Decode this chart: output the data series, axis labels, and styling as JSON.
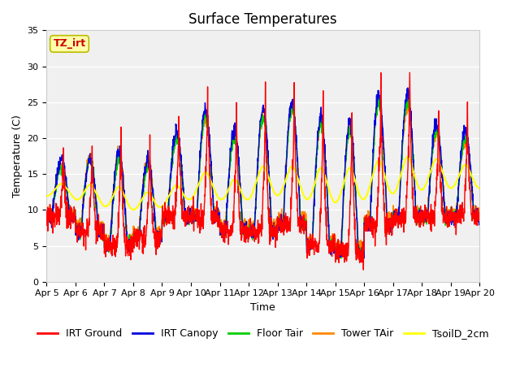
{
  "title": "Surface Temperatures",
  "xlabel": "Time",
  "ylabel": "Temperature (C)",
  "ylim": [
    0,
    35
  ],
  "ytick_vals": [
    0,
    5,
    10,
    15,
    20,
    25,
    30,
    35
  ],
  "xtick_labels": [
    "Apr 5",
    "Apr 6",
    "Apr 7",
    "Apr 8",
    "Apr 9",
    "Apr 10",
    "Apr 11",
    "Apr 12",
    "Apr 13",
    "Apr 14",
    "Apr 15",
    "Apr 16",
    "Apr 17",
    "Apr 18",
    "Apr 19",
    "Apr 20"
  ],
  "series_colors": {
    "IRT Ground": "#ff0000",
    "IRT Canopy": "#0000dd",
    "Floor Tair": "#00cc00",
    "Tower TAir": "#ff8800",
    "TsoilD_2cm": "#ffff00"
  },
  "fig_bg": "#ffffff",
  "plot_bg": "#f0f0f0",
  "grid_color": "#ffffff",
  "annotation_text": "TZ_irt",
  "annotation_color": "#cc0000",
  "annotation_bg": "#ffffaa",
  "annotation_border": "#bbbb00",
  "title_fontsize": 12,
  "axis_label_fontsize": 9,
  "tick_fontsize": 8,
  "legend_fontsize": 9,
  "linewidth": 1.0
}
